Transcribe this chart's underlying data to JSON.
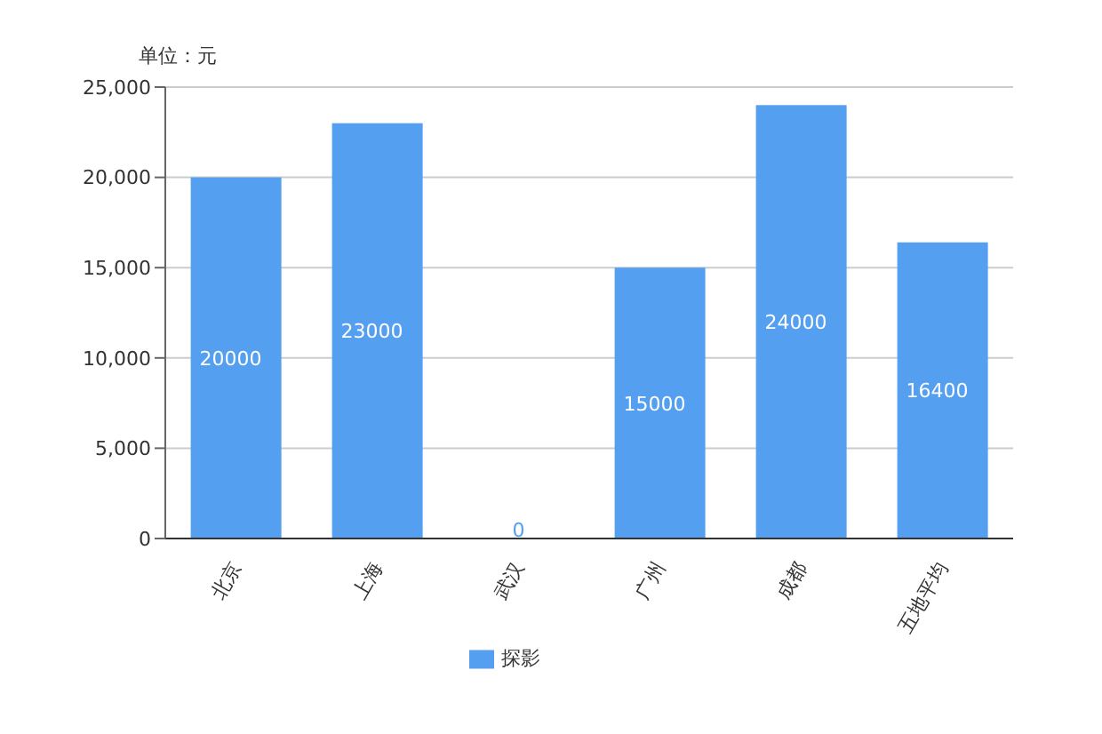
{
  "chart_data": {
    "type": "bar",
    "ylabel": "单位：元",
    "categories": [
      "北京",
      "上海",
      "武汉",
      "广州",
      "成都",
      "五地平均"
    ],
    "series": [
      {
        "name": "探影",
        "color": "#549ff0",
        "values": [
          20000,
          23000,
          0,
          15000,
          24000,
          16400
        ]
      }
    ],
    "ylim": [
      0,
      25000
    ],
    "yticks": [
      0,
      {
        "value": 5000,
        "label": "5,000"
      },
      {
        "value": 10000,
        "label": "10,000"
      },
      {
        "value": 15000,
        "label": "15,000"
      },
      {
        "value": 20000,
        "label": "20,000"
      },
      {
        "value": 25000,
        "label": "25,000"
      }
    ],
    "grid": "y",
    "legend": "bottom",
    "data_labels": true
  }
}
